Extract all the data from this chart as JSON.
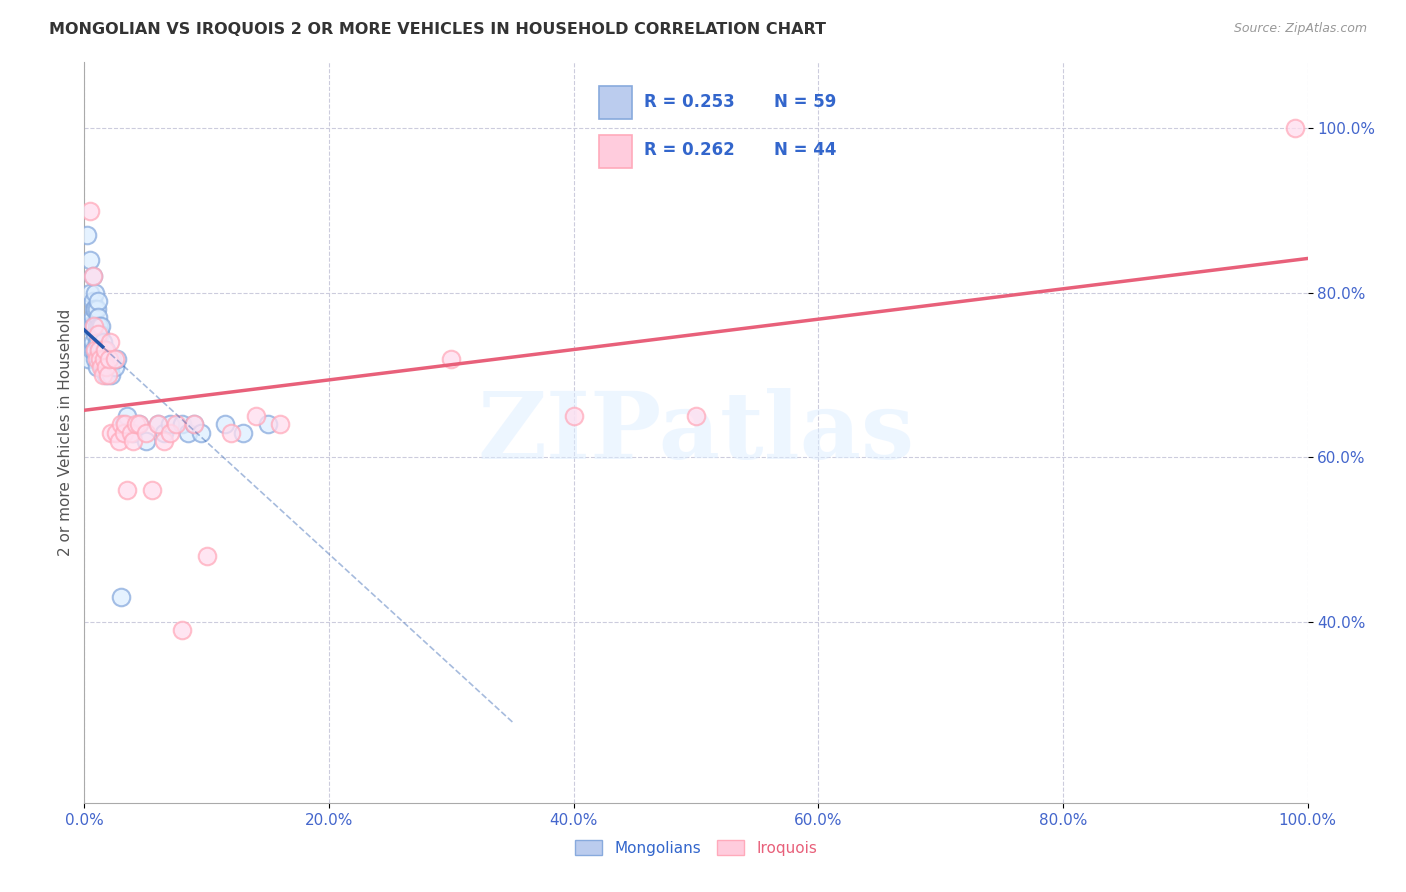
{
  "title": "MONGOLIAN VS IROQUOIS 2 OR MORE VEHICLES IN HOUSEHOLD CORRELATION CHART",
  "source": "Source: ZipAtlas.com",
  "ylabel": "2 or more Vehicles in Household",
  "watermark": "ZIPatlas",
  "legend_r_mongolian": "0.253",
  "legend_n_mongolian": "59",
  "legend_r_iroquois": "0.262",
  "legend_n_iroquois": "44",
  "scatter_mongolian_x": [
    0.002,
    0.004,
    0.003,
    0.005,
    0.005,
    0.006,
    0.006,
    0.007,
    0.007,
    0.007,
    0.007,
    0.008,
    0.008,
    0.008,
    0.009,
    0.009,
    0.009,
    0.009,
    0.01,
    0.01,
    0.01,
    0.01,
    0.011,
    0.011,
    0.011,
    0.012,
    0.012,
    0.013,
    0.013,
    0.014,
    0.014,
    0.015,
    0.015,
    0.016,
    0.017,
    0.018,
    0.018,
    0.02,
    0.021,
    0.022,
    0.023,
    0.025,
    0.027,
    0.03,
    0.032,
    0.035,
    0.04,
    0.045,
    0.05,
    0.06,
    0.065,
    0.07,
    0.08,
    0.085,
    0.09,
    0.095,
    0.115,
    0.13,
    0.15
  ],
  "scatter_mongolian_y": [
    0.87,
    0.76,
    0.72,
    0.84,
    0.8,
    0.76,
    0.73,
    0.82,
    0.79,
    0.77,
    0.74,
    0.78,
    0.76,
    0.73,
    0.8,
    0.78,
    0.75,
    0.72,
    0.78,
    0.76,
    0.74,
    0.71,
    0.79,
    0.77,
    0.74,
    0.76,
    0.73,
    0.75,
    0.72,
    0.76,
    0.73,
    0.74,
    0.71,
    0.73,
    0.72,
    0.73,
    0.7,
    0.72,
    0.71,
    0.7,
    0.72,
    0.71,
    0.72,
    0.43,
    0.64,
    0.65,
    0.63,
    0.64,
    0.62,
    0.64,
    0.63,
    0.64,
    0.64,
    0.63,
    0.64,
    0.63,
    0.64,
    0.63,
    0.64
  ],
  "scatter_iroquois_x": [
    0.005,
    0.007,
    0.008,
    0.009,
    0.01,
    0.011,
    0.012,
    0.013,
    0.014,
    0.015,
    0.016,
    0.017,
    0.018,
    0.019,
    0.02,
    0.021,
    0.022,
    0.025,
    0.026,
    0.028,
    0.03,
    0.032,
    0.033,
    0.035,
    0.038,
    0.04,
    0.042,
    0.045,
    0.05,
    0.055,
    0.06,
    0.065,
    0.07,
    0.075,
    0.08,
    0.09,
    0.1,
    0.12,
    0.14,
    0.16,
    0.3,
    0.4,
    0.5,
    0.99
  ],
  "scatter_iroquois_y": [
    0.9,
    0.82,
    0.76,
    0.73,
    0.72,
    0.75,
    0.73,
    0.72,
    0.71,
    0.7,
    0.72,
    0.73,
    0.71,
    0.7,
    0.72,
    0.74,
    0.63,
    0.72,
    0.63,
    0.62,
    0.64,
    0.63,
    0.64,
    0.56,
    0.63,
    0.62,
    0.64,
    0.64,
    0.63,
    0.56,
    0.64,
    0.62,
    0.63,
    0.64,
    0.39,
    0.64,
    0.48,
    0.63,
    0.65,
    0.64,
    0.72,
    0.65,
    0.65,
    1.0
  ],
  "blue_scatter_color": "#88AADD",
  "pink_scatter_color": "#FFAABB",
  "line_blue_color": "#2255AA",
  "line_pink_color": "#E8607A",
  "text_blue_color": "#3366CC",
  "axis_tick_color": "#4466CC",
  "title_color": "#333333",
  "source_color": "#999999",
  "grid_color": "#CCCCDD",
  "background_color": "#FFFFFF",
  "xmin": 0.0,
  "xmax": 1.0,
  "ymin": 0.18,
  "ymax": 1.08,
  "yticks": [
    1.0,
    0.8,
    0.6,
    0.4
  ],
  "xticks": [
    0.0,
    0.2,
    0.4,
    0.6,
    0.8,
    1.0
  ]
}
